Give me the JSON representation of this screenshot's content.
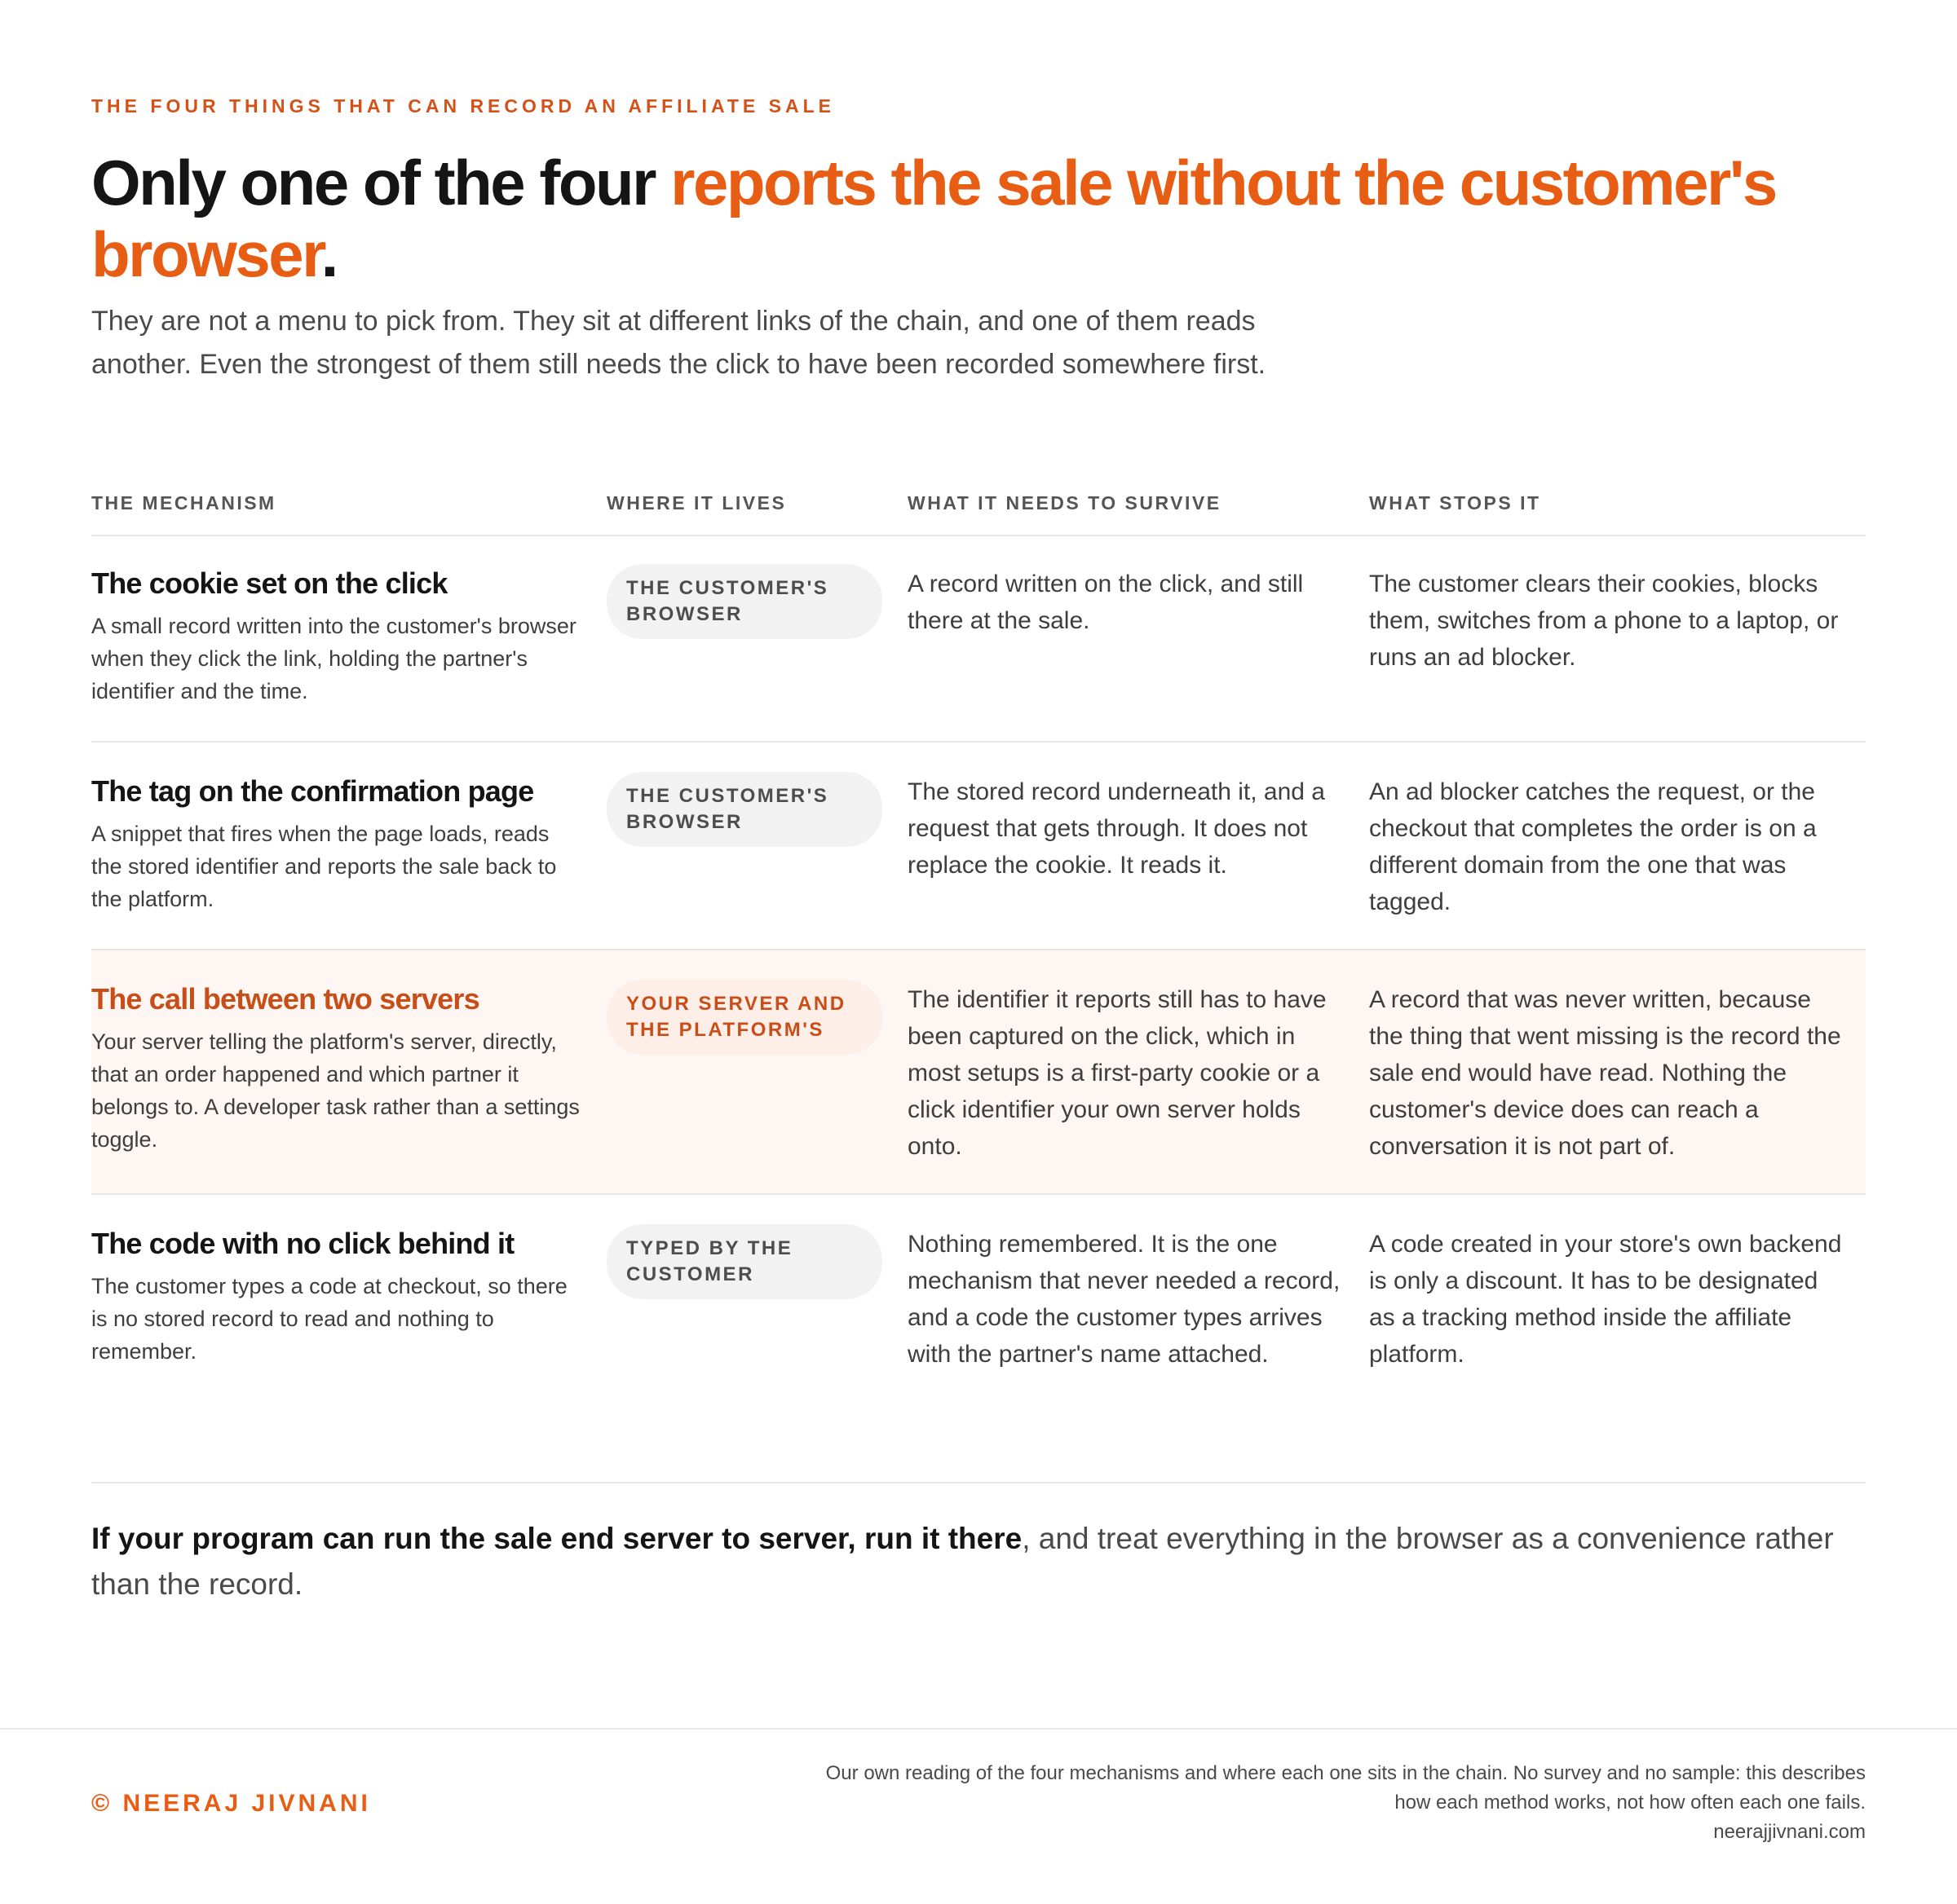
{
  "header": {
    "eyebrow": "THE FOUR THINGS THAT CAN RECORD AN AFFILIATE SALE",
    "headline_plain": "Only one of the four ",
    "headline_accent": "reports the sale without the customer's browser",
    "headline_end": ".",
    "lede": "They are not a menu to pick from. They sit at different links of the chain, and one of them reads another. Even the strongest of them still needs the click to have been recorded somewhere first."
  },
  "table": {
    "columns": [
      "THE MECHANISM",
      "WHERE IT LIVES",
      "WHAT IT NEEDS TO SURVIVE",
      "WHAT STOPS IT"
    ],
    "rows": [
      {
        "title": "The cookie set on the click",
        "description": "A small record written into the customer's browser when they click the link, holding the partner's identifier and the time.",
        "lives": "THE CUSTOMER'S BROWSER",
        "survive": "A record written on the click, and still there at the sale.",
        "stops": "The customer clears their cookies, blocks them, switches from a phone to a laptop, or runs an ad blocker."
      },
      {
        "title": "The tag on the confirmation page",
        "description": "A snippet that fires when the page loads, reads the stored identifier and reports the sale back to the platform.",
        "lives": "THE CUSTOMER'S BROWSER",
        "survive": "The stored record underneath it, and a request that gets through. It does not replace the cookie. It reads it.",
        "stops": "An ad blocker catches the request, or the checkout that completes the order is on a different domain from the one that was tagged."
      },
      {
        "title": "The call between two servers",
        "description": "Your server telling the platform's server, directly, that an order happened and which partner it belongs to. A developer task rather than a settings toggle.",
        "lives": "YOUR SERVER AND THE PLATFORM'S",
        "survive": "The identifier it reports still has to have been captured on the click, which in most setups is a first-party cookie or a click identifier your own server holds onto.",
        "stops": "A record that was never written, because the thing that went missing is the record the sale end would have read. Nothing the customer's device does can reach a conversation it is not part of."
      },
      {
        "title": "The code with no click behind it",
        "description": "The customer types a code at checkout, so there is no stored record to read and nothing to remember.",
        "lives": "TYPED BY THE CUSTOMER",
        "survive": "Nothing remembered. It is the one mechanism that never needed a record, and a code the customer types arrives with the partner's name attached.",
        "stops": "A code created in your store's own backend is only a discount. It has to be designated as a tracking method inside the affiliate platform."
      }
    ]
  },
  "takeaway": {
    "bold": "If your program can run the sale end server to server, run it there",
    "rest": ", and treat everything in the browser as a convenience rather than the record."
  },
  "footer": {
    "brand": "© NEERAJ JIVNANI",
    "note_line1": "Our own reading of the four mechanisms and where each one sits in the chain. No survey and no sample: this describes",
    "note_line2": "how each method works, not how often each one fails.",
    "site": "neerajjivnani.com"
  },
  "colors": {
    "accent": "#e85d14",
    "accent_dark": "#c84d17",
    "highlight_row": "#fdf6f2"
  }
}
